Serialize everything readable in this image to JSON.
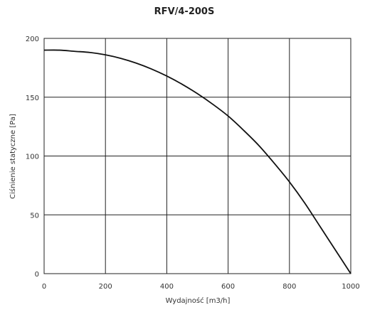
{
  "chart_data": {
    "type": "line",
    "title": "RFV/4-200S",
    "xlabel": "Wydajność [m3/h]",
    "ylabel": "Ciśnienie statyczne [Pa]",
    "xlim": [
      0,
      1000
    ],
    "ylim": [
      0,
      200
    ],
    "x_ticks": [
      0,
      200,
      400,
      600,
      800,
      1000
    ],
    "y_ticks": [
      0,
      50,
      100,
      150,
      200
    ],
    "grid": true,
    "series": [
      {
        "x": [
          0,
          50,
          100,
          150,
          200,
          250,
          300,
          350,
          400,
          450,
          500,
          550,
          600,
          650,
          700,
          750,
          800,
          850,
          900,
          950,
          1000
        ],
        "y": [
          190,
          190,
          189,
          188,
          186,
          183,
          179,
          174,
          168,
          161,
          153,
          144,
          134,
          122,
          109,
          94,
          78,
          60,
          40,
          20,
          0
        ]
      }
    ]
  }
}
